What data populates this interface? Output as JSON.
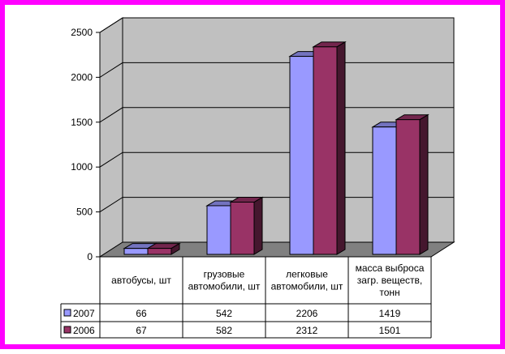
{
  "chart_data": {
    "type": "bar",
    "categories": [
      [
        "автобусы, шт"
      ],
      [
        "грузовые",
        "автомобили, шт"
      ],
      [
        "легковые",
        "автомобили, шт"
      ],
      [
        "масса выброса",
        "загр. веществ,",
        "тонн"
      ]
    ],
    "series": [
      {
        "name": "2007",
        "values": [
          66,
          542,
          2206,
          1419
        ],
        "value_labels": [
          "66",
          "542",
          "2206",
          "1419"
        ],
        "color": "#9999ff"
      },
      {
        "name": "2006",
        "values": [
          67,
          582,
          2312,
          1501
        ],
        "value_labels": [
          "67",
          "582",
          "2312",
          "1501"
        ],
        "color": "#993366"
      }
    ],
    "ylim": [
      0,
      2500
    ],
    "yticks": [
      "0",
      "500",
      "1000",
      "1500",
      "2000",
      "2500"
    ],
    "grid": true,
    "legend": "data-table",
    "wall_color": "#c0c0c0",
    "floor_color": "#808080",
    "frame_color": "#ff00ff"
  }
}
